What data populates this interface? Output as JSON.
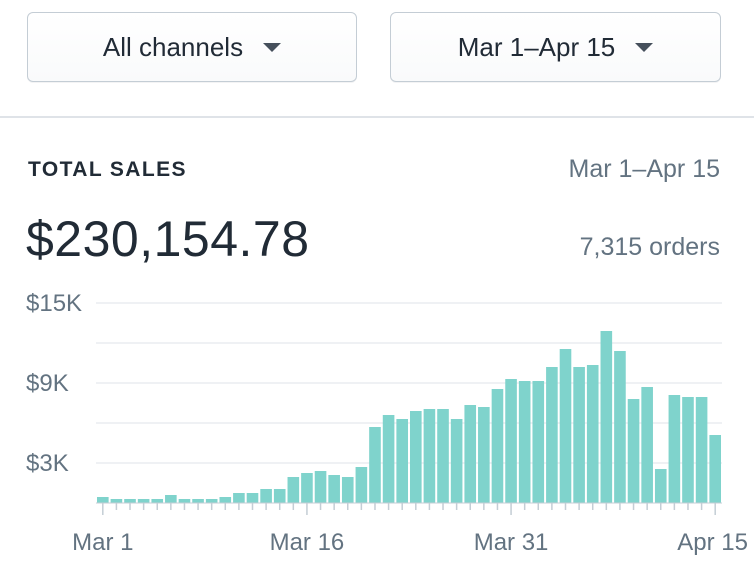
{
  "filters": {
    "channel": "All channels",
    "date_range": "Mar 1–Apr 15"
  },
  "card": {
    "title": "TOTAL SALES",
    "range": "Mar 1–Apr 15",
    "total": "$230,154.78",
    "orders": "7,315 orders"
  },
  "colors": {
    "bar": "#7fd3cc",
    "grid": "#dfe3e8",
    "axis": "#c4cdd5",
    "label": "#637381"
  },
  "chart_data": {
    "type": "bar",
    "title": "",
    "xlabel": "",
    "ylabel": "",
    "ylim": [
      0,
      15000
    ],
    "y_ticks": [
      {
        "value": 15000,
        "label": "$15K"
      },
      {
        "value": 9000,
        "label": "$9K"
      },
      {
        "value": 3000,
        "label": "$3K"
      }
    ],
    "x_tick_labels": [
      {
        "index": 0,
        "label": "Mar 1"
      },
      {
        "index": 15,
        "label": "Mar 16"
      },
      {
        "index": 30,
        "label": "Mar 31"
      },
      {
        "index": 45,
        "label": "Apr 15"
      }
    ],
    "categories": [
      "Mar 1",
      "Mar 2",
      "Mar 3",
      "Mar 4",
      "Mar 5",
      "Mar 6",
      "Mar 7",
      "Mar 8",
      "Mar 9",
      "Mar 10",
      "Mar 11",
      "Mar 12",
      "Mar 13",
      "Mar 14",
      "Mar 15",
      "Mar 16",
      "Mar 17",
      "Mar 18",
      "Mar 19",
      "Mar 20",
      "Mar 21",
      "Mar 22",
      "Mar 23",
      "Mar 24",
      "Mar 25",
      "Mar 26",
      "Mar 27",
      "Mar 28",
      "Mar 29",
      "Mar 30",
      "Mar 31",
      "Apr 1",
      "Apr 2",
      "Apr 3",
      "Apr 4",
      "Apr 5",
      "Apr 6",
      "Apr 7",
      "Apr 8",
      "Apr 9",
      "Apr 10",
      "Apr 11",
      "Apr 12",
      "Apr 13",
      "Apr 14",
      "Apr 15"
    ],
    "values": [
      450,
      300,
      300,
      300,
      300,
      600,
      300,
      300,
      300,
      450,
      750,
      750,
      1050,
      1050,
      1950,
      2250,
      2400,
      2100,
      1950,
      2700,
      5700,
      6600,
      6300,
      6900,
      7050,
      7050,
      6300,
      7350,
      7200,
      8550,
      9300,
      9150,
      9150,
      10200,
      11550,
      10200,
      10350,
      12900,
      11400,
      7800,
      8700,
      2550,
      8100,
      7950,
      7950,
      5100
    ]
  }
}
